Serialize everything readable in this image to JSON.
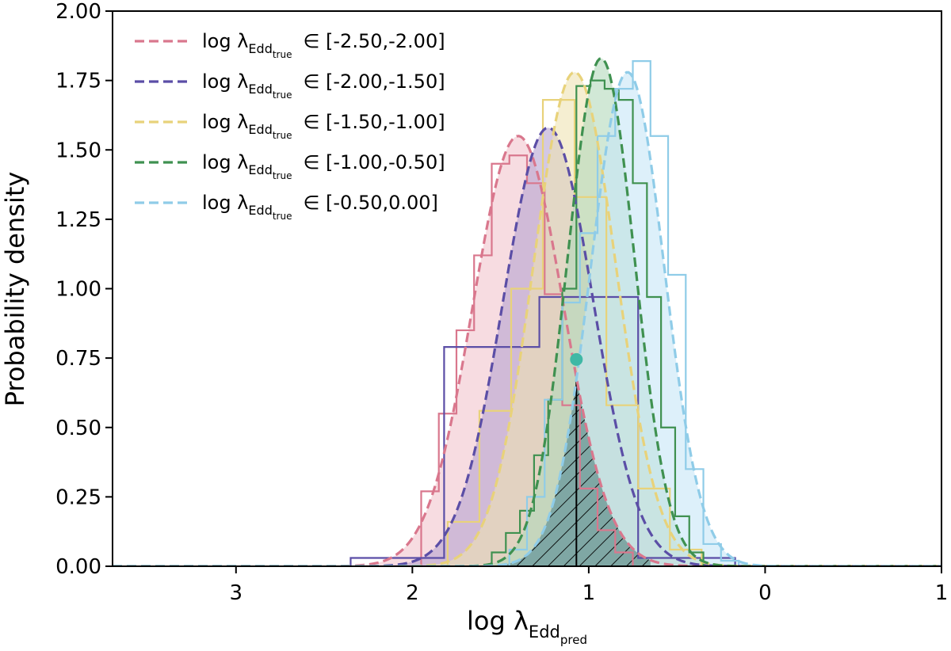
{
  "chart_data": {
    "type": "area",
    "xlabel": "log λEddpred",
    "ylabel": "Probability density",
    "xlim": [
      -3.7,
      1.0
    ],
    "ylim": [
      0.0,
      2.0
    ],
    "x_ticks": [
      -3,
      -2,
      -1,
      0,
      1
    ],
    "x_tick_labels": [
      "3",
      "2",
      "1",
      "0",
      "1"
    ],
    "y_ticks": [
      0.0,
      0.25,
      0.5,
      0.75,
      1.0,
      1.25,
      1.5,
      1.75,
      2.0
    ],
    "y_tick_labels": [
      "0.00",
      "0.25",
      "0.50",
      "0.75",
      "1.00",
      "1.25",
      "1.50",
      "1.75",
      "2.00"
    ],
    "grid": false,
    "legend_position": "top-left",
    "series": [
      {
        "name": "log λEddtrue ∈ [-2.50,-2.00]",
        "label_main": "log λ",
        "label_sub": "Edd",
        "label_subsub": "true",
        "label_range": "∈ [-2.50,-2.00]",
        "color": "#d9778d",
        "fill": "#f2c5cd",
        "gaussian": {
          "mean": -1.4,
          "sigma": 0.257,
          "peak": 1.55
        },
        "histogram": {
          "edges": [
            -1.95,
            -1.85,
            -1.75,
            -1.65,
            -1.55,
            -1.45,
            -1.35,
            -1.25,
            -1.15,
            -1.05,
            -0.95,
            -0.85,
            -0.75
          ],
          "values": [
            0.27,
            0.55,
            0.85,
            1.12,
            1.45,
            1.48,
            1.38,
            0.98,
            0.58,
            0.28,
            0.13,
            0.05
          ]
        }
      },
      {
        "name": "log λEddtrue ∈ [-2.00,-1.50]",
        "label_main": "log λ",
        "label_sub": "Edd",
        "label_subsub": "true",
        "label_range": "∈ [-2.00,-1.50]",
        "color": "#5b4ea6",
        "fill": "#b6a3d1",
        "gaussian": {
          "mean": -1.23,
          "sigma": 0.255,
          "peak": 1.58
        },
        "histogram": {
          "edges": [
            -2.35,
            -1.82,
            -1.28,
            -0.72,
            -0.17
          ],
          "values": [
            0.03,
            0.79,
            0.97,
            0.03
          ]
        }
      },
      {
        "name": "log λEddtrue ∈ [-1.50,-1.00]",
        "label_main": "log λ",
        "label_sub": "Edd",
        "label_subsub": "true",
        "label_range": "∈ [-1.50,-1.00]",
        "color": "#e8d27a",
        "fill": "#efe2b2",
        "gaussian": {
          "mean": -1.08,
          "sigma": 0.235,
          "peak": 1.78
        },
        "histogram": {
          "edges": [
            -1.8,
            -1.62,
            -1.44,
            -1.26,
            -1.08,
            -0.9,
            -0.72,
            -0.54,
            -0.36
          ],
          "values": [
            0.16,
            0.56,
            1.0,
            1.68,
            1.33,
            0.58,
            0.28,
            0.06
          ]
        }
      },
      {
        "name": "log λEddtrue ∈ [-1.00,-0.50]",
        "label_main": "log λ",
        "label_sub": "Edd",
        "label_subsub": "true",
        "label_range": "∈ [-1.00,-0.50]",
        "color": "#3f9150",
        "fill": "#b3d9bb",
        "gaussian": {
          "mean": -0.93,
          "sigma": 0.19,
          "peak": 1.83
        },
        "histogram": {
          "edges": [
            -1.55,
            -1.47,
            -1.39,
            -1.31,
            -1.23,
            -1.15,
            -1.07,
            -0.99,
            -0.91,
            -0.83,
            -0.75,
            -0.67,
            -0.59,
            -0.51,
            -0.43,
            -0.35
          ],
          "values": [
            0.05,
            0.12,
            0.2,
            0.4,
            0.6,
            1.0,
            1.73,
            1.75,
            1.72,
            1.68,
            1.38,
            0.97,
            0.5,
            0.18,
            0.05
          ]
        }
      },
      {
        "name": "log λEddtrue ∈ [-0.50,0.00]",
        "label_main": "log λ",
        "label_sub": "Edd",
        "label_subsub": "true",
        "label_range": "∈ [-0.50,0.00]",
        "color": "#8fcce8",
        "fill": "#c7e6f6",
        "gaussian": {
          "mean": -0.78,
          "sigma": 0.208,
          "peak": 1.78
        },
        "histogram": {
          "edges": [
            -1.45,
            -1.35,
            -1.25,
            -1.15,
            -1.05,
            -0.95,
            -0.85,
            -0.75,
            -0.65,
            -0.55,
            -0.45,
            -0.35,
            -0.25,
            -0.15
          ],
          "values": [
            0.06,
            0.25,
            0.6,
            0.95,
            1.2,
            1.55,
            1.72,
            1.82,
            1.55,
            1.05,
            0.35,
            0.08,
            0.02
          ]
        }
      }
    ],
    "overlap_region": {
      "from": -1.6,
      "to": -0.65,
      "style": "hatched",
      "vertical_line_x": -1.07
    },
    "marker": {
      "x": -1.07,
      "y": 0.745,
      "color": "#3fb8a5"
    }
  }
}
